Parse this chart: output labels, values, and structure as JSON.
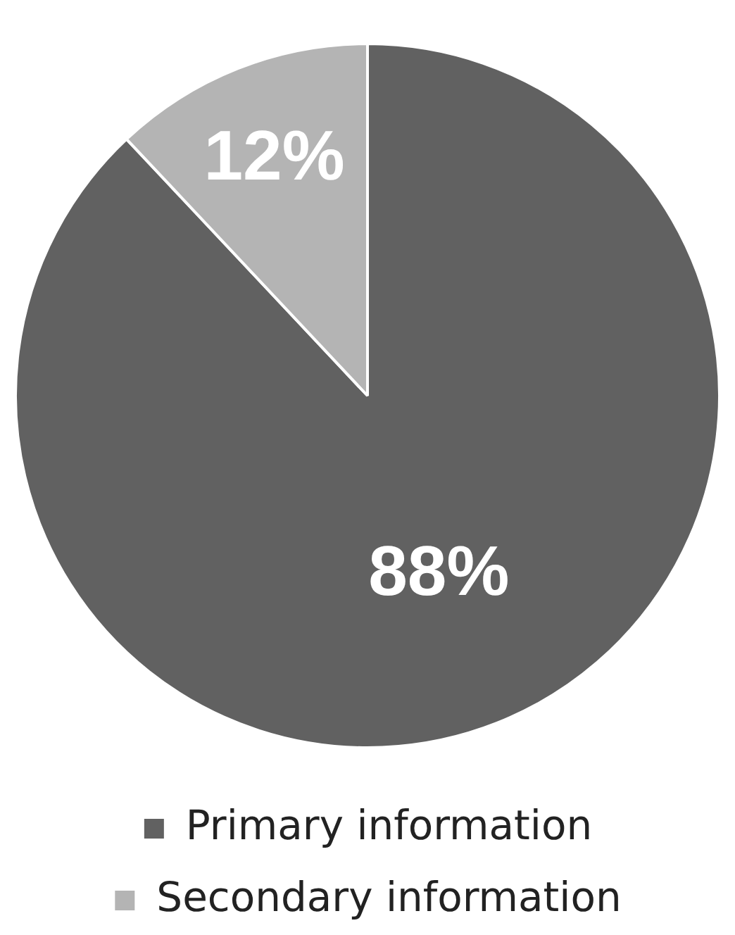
{
  "chart_data": {
    "type": "pie",
    "categories": [
      "Primary information",
      "Secondary information"
    ],
    "values": [
      88,
      12
    ],
    "colors": [
      "#616161",
      "#b4b4b4"
    ],
    "value_labels": [
      "88%",
      "12%"
    ],
    "legend": "bottom"
  }
}
